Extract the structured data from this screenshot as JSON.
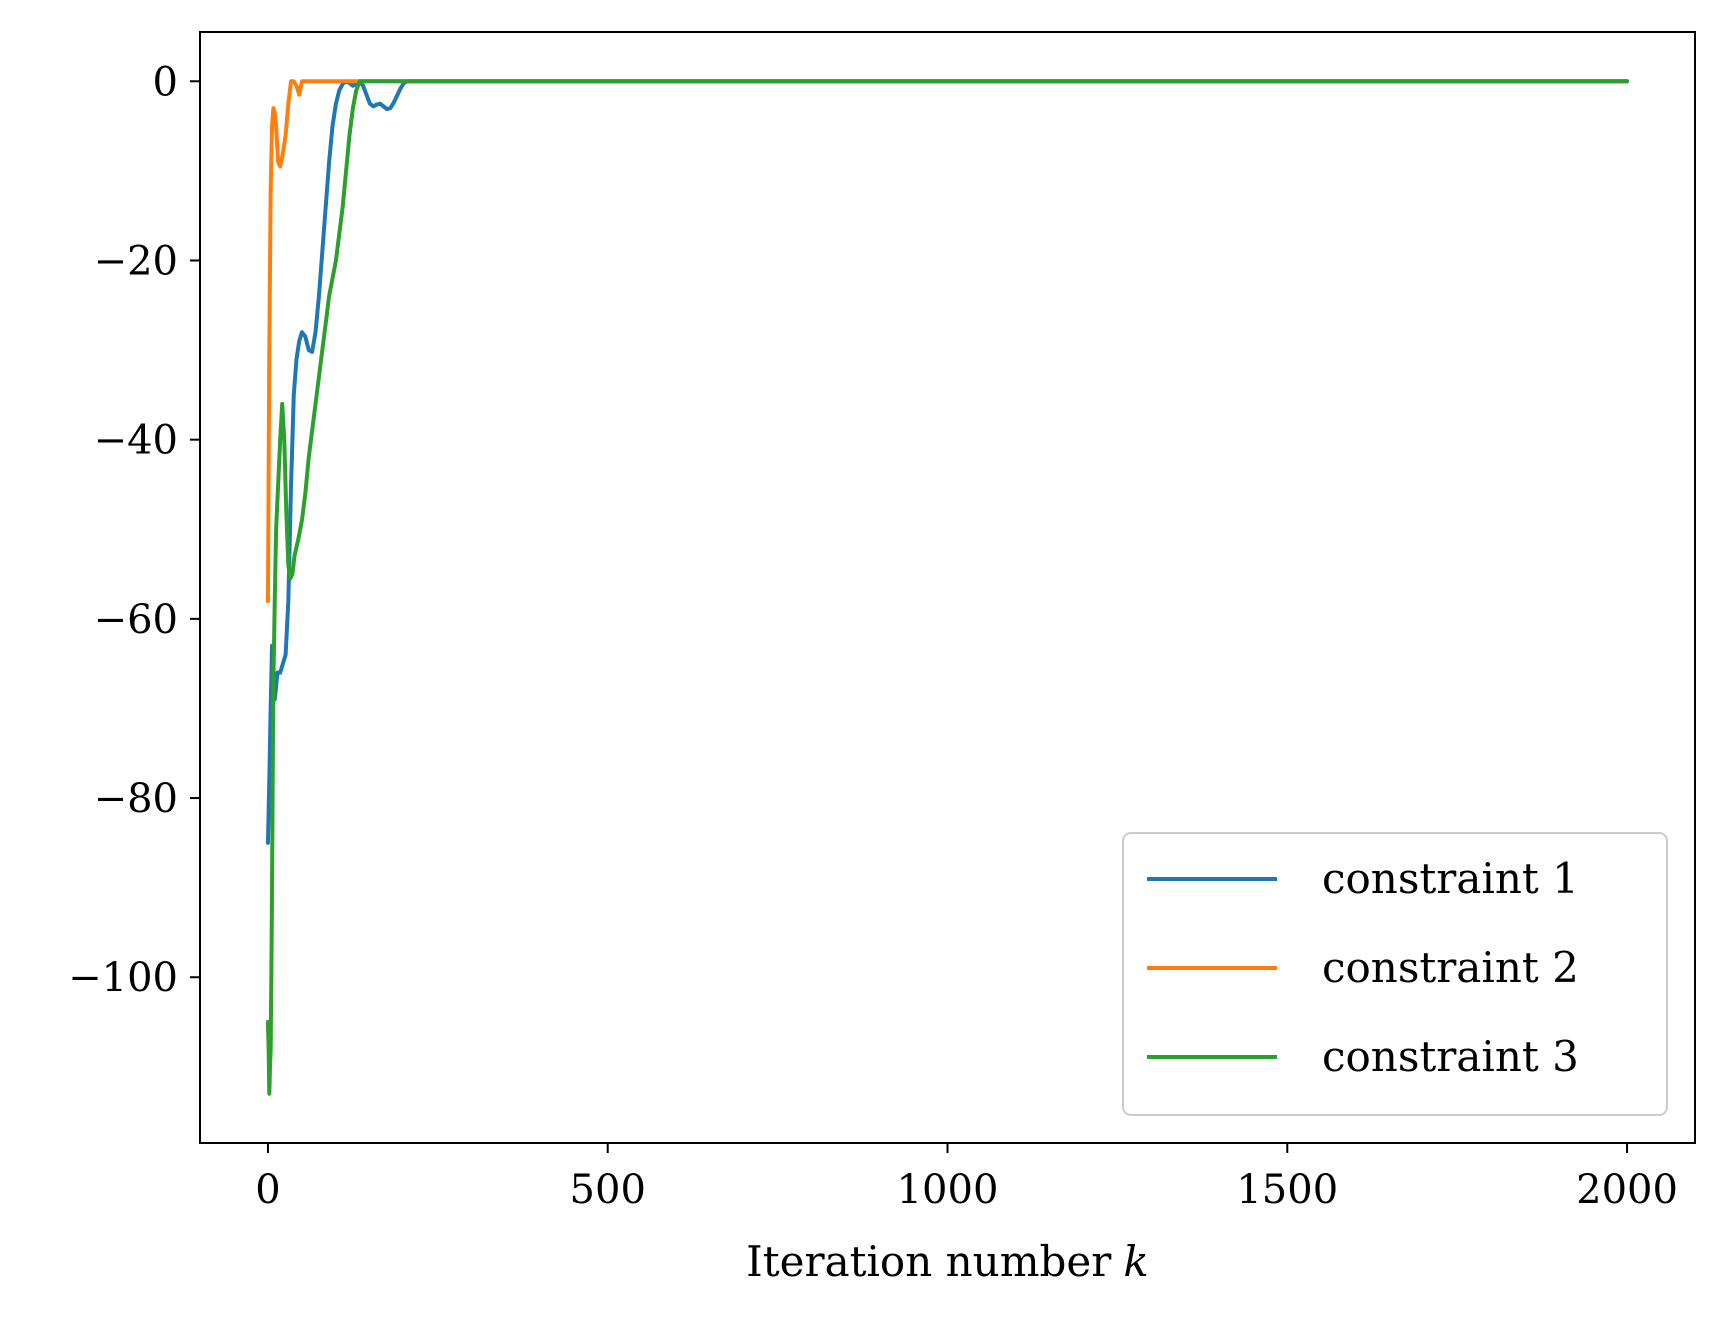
{
  "chart_data": {
    "type": "line",
    "title": "",
    "xlabel": "Iteration number",
    "xlabel_var": "k",
    "ylabel": "",
    "xlim": [
      -100,
      2100
    ],
    "ylim": [
      -118.5,
      5.5
    ],
    "xticks": [
      0,
      500,
      1000,
      1500,
      2000
    ],
    "xtick_labels": [
      "0",
      "500",
      "1000",
      "1500",
      "2000"
    ],
    "yticks": [
      0,
      -20,
      -40,
      -60,
      -80,
      -100
    ],
    "ytick_labels": [
      "0",
      "−20",
      "−40",
      "−60",
      "−80",
      "−100"
    ],
    "grid": false,
    "legend_position": "lower-right",
    "series": [
      {
        "name": "constraint 1",
        "color": "#1f77b4",
        "x": [
          0,
          2,
          4,
          6,
          8,
          10,
          14,
          18,
          22,
          26,
          30,
          34,
          38,
          42,
          46,
          50,
          55,
          60,
          65,
          70,
          75,
          80,
          85,
          90,
          95,
          100,
          105,
          110,
          115,
          120,
          125,
          130,
          135,
          140,
          145,
          150,
          155,
          160,
          165,
          170,
          175,
          180,
          185,
          190,
          195,
          200,
          205,
          210,
          215,
          220,
          300,
          500,
          1000,
          1500,
          2000
        ],
        "y": [
          -85,
          -78,
          -70,
          -63,
          -68,
          -69,
          -66,
          -66,
          -65,
          -64,
          -58,
          -45,
          -35,
          -31,
          -29,
          -28,
          -28.5,
          -30,
          -30.2,
          -28,
          -24,
          -19,
          -14,
          -9,
          -5,
          -2.5,
          -1,
          -0.3,
          0,
          -0.2,
          -0.5,
          -0.3,
          0,
          -0.5,
          -1.5,
          -2.5,
          -2.8,
          -2.6,
          -2.5,
          -2.8,
          -3.1,
          -3.0,
          -2.4,
          -1.6,
          -0.8,
          -0.2,
          0,
          0,
          0,
          0,
          0,
          0,
          0,
          0,
          0
        ]
      },
      {
        "name": "constraint 2",
        "color": "#ff7f0e",
        "x": [
          0,
          2,
          4,
          6,
          8,
          10,
          12,
          15,
          18,
          22,
          26,
          30,
          34,
          38,
          42,
          46,
          50,
          60,
          80,
          100,
          120,
          140,
          160,
          200,
          500,
          1000,
          1500,
          2000
        ],
        "y": [
          -58,
          -30,
          -12,
          -5,
          -3,
          -3.5,
          -5,
          -9,
          -9.5,
          -8,
          -6,
          -2.5,
          0,
          0,
          -0.5,
          -1.5,
          0,
          0,
          0,
          0,
          0,
          0,
          0,
          0,
          0,
          0,
          0,
          0
        ]
      },
      {
        "name": "constraint 3",
        "color": "#2ca02c",
        "x": [
          0,
          1,
          2,
          3,
          4,
          5,
          6,
          7,
          8,
          10,
          12,
          15,
          18,
          21,
          24,
          27,
          30,
          33,
          36,
          39,
          42,
          45,
          50,
          55,
          60,
          65,
          70,
          75,
          80,
          85,
          90,
          95,
          100,
          105,
          110,
          115,
          120,
          125,
          130,
          135,
          140,
          145,
          150,
          200,
          500,
          1000,
          1500,
          2000
        ],
        "y": [
          -105,
          -108,
          -113,
          -110,
          -108,
          -100,
          -90,
          -78,
          -67,
          -58,
          -50,
          -45,
          -40,
          -36,
          -40,
          -48,
          -54,
          -55.5,
          -55,
          -53,
          -52,
          -51,
          -49,
          -46,
          -42,
          -39,
          -36,
          -33,
          -30,
          -27,
          -24,
          -22,
          -20,
          -17,
          -14,
          -10,
          -6,
          -3,
          -1,
          0,
          0,
          0,
          0,
          0,
          0,
          0,
          0,
          0
        ]
      }
    ]
  }
}
